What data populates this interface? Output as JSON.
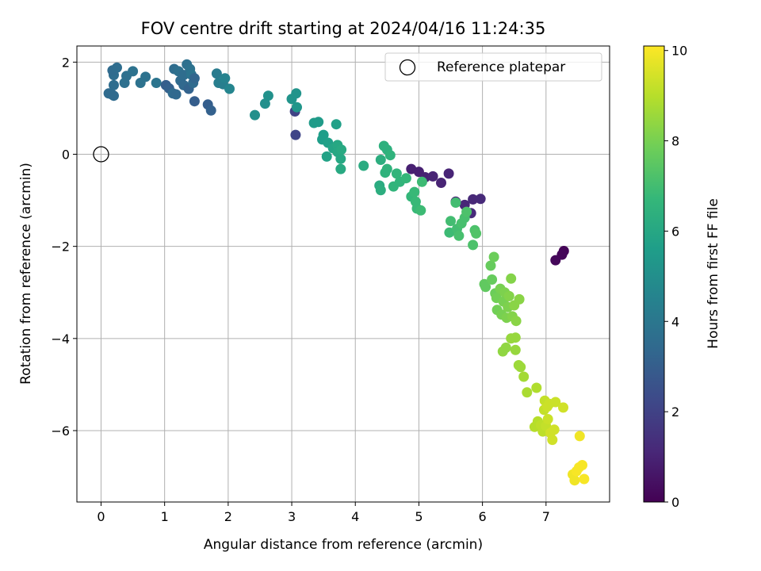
{
  "chart_data": {
    "type": "scatter",
    "title": "FOV centre drift starting at 2024/04/16 11:24:35",
    "xlabel": "Angular distance from reference (arcmin)",
    "ylabel": "Rotation from reference (arcmin)",
    "xlim": [
      -0.38,
      8.0
    ],
    "ylim": [
      -7.55,
      2.35
    ],
    "xticks": [
      0,
      1,
      2,
      3,
      4,
      5,
      6,
      7
    ],
    "yticks": [
      -6,
      -4,
      -2,
      0,
      2
    ],
    "xtick_labels": [
      "0",
      "1",
      "2",
      "3",
      "4",
      "5",
      "6",
      "7"
    ],
    "ytick_labels": [
      "−6",
      "−4",
      "−2",
      "0",
      "2"
    ],
    "grid": true,
    "colormap": "viridis",
    "colorbar": {
      "label": "Hours from first FF file",
      "range": [
        0,
        10.1
      ],
      "ticks": [
        0,
        2,
        4,
        6,
        8,
        10
      ],
      "tick_labels": [
        "0",
        "2",
        "4",
        "6",
        "8",
        "10"
      ]
    },
    "legend": {
      "position": "top-right",
      "entries": [
        {
          "label": "Reference platepar",
          "marker": "open-circle"
        }
      ]
    },
    "reference_point": {
      "x": 0,
      "y": 0
    },
    "colors": {
      "viridis": [
        "#440154",
        "#482878",
        "#3e4989",
        "#31688e",
        "#26828e",
        "#1f9e89",
        "#35b779",
        "#6ece58",
        "#b5de2b",
        "#fde725"
      ],
      "grid": "#b0b0b0",
      "axes": "#000000"
    },
    "series": [
      {
        "points": [
          {
            "x": 7.28,
            "y": -2.1,
            "c": 0.1
          },
          {
            "x": 7.25,
            "y": -2.18,
            "c": 0.15
          },
          {
            "x": 7.15,
            "y": -2.3,
            "c": 0.2
          },
          {
            "x": 4.88,
            "y": -0.32,
            "c": 0.9
          },
          {
            "x": 5.0,
            "y": -0.38,
            "c": 0.9
          },
          {
            "x": 5.1,
            "y": -0.5,
            "c": 0.95
          },
          {
            "x": 5.22,
            "y": -0.48,
            "c": 1.0
          },
          {
            "x": 5.35,
            "y": -0.62,
            "c": 1.0
          },
          {
            "x": 5.47,
            "y": -0.42,
            "c": 1.05
          },
          {
            "x": 5.58,
            "y": -1.03,
            "c": 1.1
          },
          {
            "x": 5.72,
            "y": -1.1,
            "c": 1.1
          },
          {
            "x": 5.85,
            "y": -0.98,
            "c": 1.15
          },
          {
            "x": 5.97,
            "y": -0.97,
            "c": 1.2
          },
          {
            "x": 5.82,
            "y": -1.28,
            "c": 1.2
          },
          {
            "x": 3.05,
            "y": 0.93,
            "c": 2.0
          },
          {
            "x": 3.06,
            "y": 0.42,
            "c": 2.1
          },
          {
            "x": 0.17,
            "y": 1.3,
            "c": 3.4
          },
          {
            "x": 0.2,
            "y": 1.27,
            "c": 3.5
          },
          {
            "x": 0.12,
            "y": 1.32,
            "c": 3.5
          },
          {
            "x": 0.2,
            "y": 1.5,
            "c": 3.6
          },
          {
            "x": 0.2,
            "y": 1.72,
            "c": 3.6
          },
          {
            "x": 0.18,
            "y": 1.82,
            "c": 3.5
          },
          {
            "x": 0.25,
            "y": 1.88,
            "c": 3.6
          },
          {
            "x": 0.37,
            "y": 1.55,
            "c": 3.7
          },
          {
            "x": 0.4,
            "y": 1.7,
            "c": 3.7
          },
          {
            "x": 0.5,
            "y": 1.8,
            "c": 3.8
          },
          {
            "x": 0.62,
            "y": 1.55,
            "c": 3.8
          },
          {
            "x": 0.7,
            "y": 1.68,
            "c": 3.8
          },
          {
            "x": 0.87,
            "y": 1.55,
            "c": 3.9
          },
          {
            "x": 1.02,
            "y": 1.5,
            "c": 3.0
          },
          {
            "x": 1.07,
            "y": 1.43,
            "c": 3.1
          },
          {
            "x": 1.13,
            "y": 1.32,
            "c": 3.5
          },
          {
            "x": 1.18,
            "y": 1.3,
            "c": 3.4
          },
          {
            "x": 1.15,
            "y": 1.85,
            "c": 3.6
          },
          {
            "x": 1.22,
            "y": 1.8,
            "c": 3.7
          },
          {
            "x": 1.25,
            "y": 1.6,
            "c": 3.5
          },
          {
            "x": 1.3,
            "y": 1.72,
            "c": 3.6
          },
          {
            "x": 1.3,
            "y": 1.5,
            "c": 3.4
          },
          {
            "x": 1.35,
            "y": 1.95,
            "c": 3.7
          },
          {
            "x": 1.38,
            "y": 1.42,
            "c": 3.2
          },
          {
            "x": 1.4,
            "y": 1.85,
            "c": 3.8
          },
          {
            "x": 1.42,
            "y": 1.73,
            "c": 3.9
          },
          {
            "x": 1.45,
            "y": 1.55,
            "c": 3.5
          },
          {
            "x": 1.47,
            "y": 1.65,
            "c": 3.3
          },
          {
            "x": 1.47,
            "y": 1.15,
            "c": 3.0
          },
          {
            "x": 1.68,
            "y": 1.08,
            "c": 3.0
          },
          {
            "x": 1.73,
            "y": 0.95,
            "c": 3.1
          },
          {
            "x": 1.82,
            "y": 1.75,
            "c": 4.2
          },
          {
            "x": 1.85,
            "y": 1.55,
            "c": 4.3
          },
          {
            "x": 1.92,
            "y": 1.52,
            "c": 4.3
          },
          {
            "x": 1.95,
            "y": 1.65,
            "c": 4.5
          },
          {
            "x": 2.02,
            "y": 1.42,
            "c": 4.6
          },
          {
            "x": 2.42,
            "y": 0.85,
            "c": 5.0
          },
          {
            "x": 2.58,
            "y": 1.1,
            "c": 5.0
          },
          {
            "x": 2.63,
            "y": 1.27,
            "c": 5.1
          },
          {
            "x": 3.0,
            "y": 1.2,
            "c": 5.2
          },
          {
            "x": 3.07,
            "y": 1.32,
            "c": 5.2
          },
          {
            "x": 3.08,
            "y": 1.02,
            "c": 5.3
          },
          {
            "x": 3.35,
            "y": 0.68,
            "c": 5.5
          },
          {
            "x": 3.42,
            "y": 0.7,
            "c": 5.5
          },
          {
            "x": 3.48,
            "y": 0.32,
            "c": 5.6
          },
          {
            "x": 3.5,
            "y": 0.42,
            "c": 5.6
          },
          {
            "x": 3.57,
            "y": 0.25,
            "c": 5.7
          },
          {
            "x": 3.55,
            "y": -0.05,
            "c": 5.8
          },
          {
            "x": 3.65,
            "y": 0.13,
            "c": 5.9
          },
          {
            "x": 3.7,
            "y": 0.65,
            "c": 5.7
          },
          {
            "x": 3.72,
            "y": 0.2,
            "c": 6.0
          },
          {
            "x": 3.72,
            "y": 0.05,
            "c": 6.0
          },
          {
            "x": 3.77,
            "y": -0.1,
            "c": 6.0
          },
          {
            "x": 3.77,
            "y": -0.32,
            "c": 6.1
          },
          {
            "x": 3.78,
            "y": 0.1,
            "c": 6.1
          },
          {
            "x": 4.13,
            "y": -0.25,
            "c": 6.2
          },
          {
            "x": 4.38,
            "y": -0.68,
            "c": 6.2
          },
          {
            "x": 4.4,
            "y": -0.78,
            "c": 6.3
          },
          {
            "x": 4.4,
            "y": -0.12,
            "c": 6.3
          },
          {
            "x": 4.45,
            "y": 0.18,
            "c": 6.4
          },
          {
            "x": 4.5,
            "y": 0.1,
            "c": 6.4
          },
          {
            "x": 4.47,
            "y": -0.4,
            "c": 6.5
          },
          {
            "x": 4.5,
            "y": -0.32,
            "c": 6.5
          },
          {
            "x": 4.55,
            "y": -0.02,
            "c": 6.5
          },
          {
            "x": 4.6,
            "y": -0.7,
            "c": 6.6
          },
          {
            "x": 4.65,
            "y": -0.42,
            "c": 6.6
          },
          {
            "x": 4.7,
            "y": -0.6,
            "c": 6.6
          },
          {
            "x": 4.8,
            "y": -0.52,
            "c": 6.7
          },
          {
            "x": 4.88,
            "y": -0.92,
            "c": 6.7
          },
          {
            "x": 4.93,
            "y": -0.82,
            "c": 6.8
          },
          {
            "x": 4.95,
            "y": -1.03,
            "c": 6.8
          },
          {
            "x": 4.97,
            "y": -1.18,
            "c": 6.8
          },
          {
            "x": 5.03,
            "y": -1.22,
            "c": 6.9
          },
          {
            "x": 5.05,
            "y": -0.6,
            "c": 6.9
          },
          {
            "x": 5.48,
            "y": -1.7,
            "c": 6.9
          },
          {
            "x": 5.5,
            "y": -1.45,
            "c": 7.0
          },
          {
            "x": 5.58,
            "y": -1.05,
            "c": 7.0
          },
          {
            "x": 5.6,
            "y": -1.62,
            "c": 7.0
          },
          {
            "x": 5.63,
            "y": -1.77,
            "c": 7.1
          },
          {
            "x": 5.67,
            "y": -1.5,
            "c": 7.1
          },
          {
            "x": 5.72,
            "y": -1.38,
            "c": 7.1
          },
          {
            "x": 5.75,
            "y": -1.25,
            "c": 7.2
          },
          {
            "x": 5.85,
            "y": -1.97,
            "c": 7.2
          },
          {
            "x": 5.88,
            "y": -1.65,
            "c": 7.2
          },
          {
            "x": 5.9,
            "y": -1.72,
            "c": 7.3
          },
          {
            "x": 6.03,
            "y": -2.82,
            "c": 7.6
          },
          {
            "x": 6.05,
            "y": -2.88,
            "c": 7.6
          },
          {
            "x": 6.13,
            "y": -2.42,
            "c": 7.7
          },
          {
            "x": 6.15,
            "y": -2.72,
            "c": 7.7
          },
          {
            "x": 6.18,
            "y": -2.23,
            "c": 7.8
          },
          {
            "x": 6.2,
            "y": -3.02,
            "c": 7.8
          },
          {
            "x": 6.22,
            "y": -3.12,
            "c": 7.9
          },
          {
            "x": 6.23,
            "y": -3.38,
            "c": 7.9
          },
          {
            "x": 6.28,
            "y": -2.92,
            "c": 8.0
          },
          {
            "x": 6.3,
            "y": -3.48,
            "c": 8.0
          },
          {
            "x": 6.33,
            "y": -3.2,
            "c": 8.0
          },
          {
            "x": 6.35,
            "y": -3.0,
            "c": 8.1
          },
          {
            "x": 6.38,
            "y": -3.55,
            "c": 8.1
          },
          {
            "x": 6.4,
            "y": -3.32,
            "c": 8.1
          },
          {
            "x": 6.42,
            "y": -3.08,
            "c": 8.2
          },
          {
            "x": 6.45,
            "y": -2.7,
            "c": 8.2
          },
          {
            "x": 6.47,
            "y": -3.52,
            "c": 8.2
          },
          {
            "x": 6.5,
            "y": -3.28,
            "c": 8.3
          },
          {
            "x": 6.53,
            "y": -3.62,
            "c": 8.3
          },
          {
            "x": 6.58,
            "y": -3.15,
            "c": 8.3
          },
          {
            "x": 6.32,
            "y": -4.28,
            "c": 8.4
          },
          {
            "x": 6.37,
            "y": -4.2,
            "c": 8.4
          },
          {
            "x": 6.45,
            "y": -4.0,
            "c": 8.5
          },
          {
            "x": 6.52,
            "y": -3.98,
            "c": 8.5
          },
          {
            "x": 6.52,
            "y": -4.25,
            "c": 8.5
          },
          {
            "x": 6.57,
            "y": -4.58,
            "c": 8.6
          },
          {
            "x": 6.6,
            "y": -4.62,
            "c": 8.6
          },
          {
            "x": 6.65,
            "y": -4.83,
            "c": 8.7
          },
          {
            "x": 6.7,
            "y": -5.17,
            "c": 8.8
          },
          {
            "x": 6.85,
            "y": -5.07,
            "c": 8.9
          },
          {
            "x": 6.82,
            "y": -5.92,
            "c": 9.0
          },
          {
            "x": 6.87,
            "y": -5.8,
            "c": 9.0
          },
          {
            "x": 6.92,
            "y": -5.88,
            "c": 9.1
          },
          {
            "x": 6.95,
            "y": -6.02,
            "c": 9.1
          },
          {
            "x": 6.97,
            "y": -5.55,
            "c": 9.2
          },
          {
            "x": 6.98,
            "y": -5.35,
            "c": 9.2
          },
          {
            "x": 7.0,
            "y": -5.9,
            "c": 9.2
          },
          {
            "x": 7.02,
            "y": -5.48,
            "c": 9.3
          },
          {
            "x": 7.03,
            "y": -5.75,
            "c": 9.3
          },
          {
            "x": 7.05,
            "y": -5.42,
            "c": 9.3
          },
          {
            "x": 7.07,
            "y": -6.05,
            "c": 9.4
          },
          {
            "x": 7.1,
            "y": -6.2,
            "c": 9.4
          },
          {
            "x": 7.13,
            "y": -5.98,
            "c": 9.4
          },
          {
            "x": 7.15,
            "y": -5.38,
            "c": 9.3
          },
          {
            "x": 7.27,
            "y": -5.5,
            "c": 9.4
          },
          {
            "x": 7.42,
            "y": -6.95,
            "c": 9.9
          },
          {
            "x": 7.45,
            "y": -7.08,
            "c": 9.9
          },
          {
            "x": 7.48,
            "y": -6.88,
            "c": 10.0
          },
          {
            "x": 7.52,
            "y": -6.8,
            "c": 10.0
          },
          {
            "x": 7.53,
            "y": -6.12,
            "c": 9.9
          },
          {
            "x": 7.57,
            "y": -6.75,
            "c": 10.0
          },
          {
            "x": 7.6,
            "y": -7.05,
            "c": 10.0
          }
        ]
      }
    ]
  }
}
